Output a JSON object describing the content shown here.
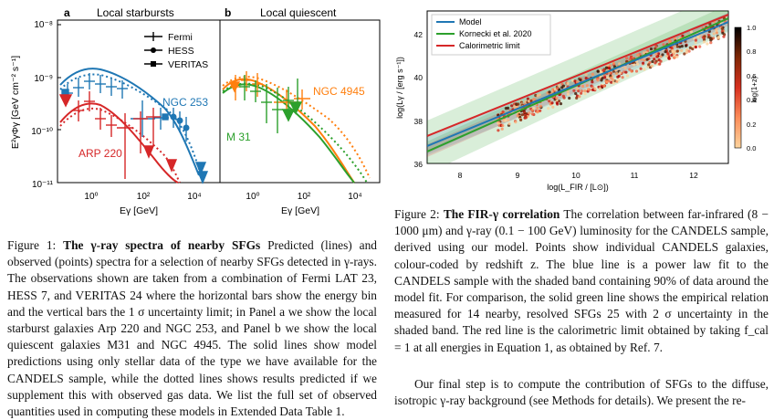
{
  "figure1": {
    "panel_a": {
      "letter": "a",
      "title": "Local starbursts",
      "legend": [
        "Fermi",
        "HESS",
        "VERITAS"
      ],
      "labels": [
        "NGC 253",
        "ARP 220"
      ]
    },
    "panel_b": {
      "letter": "b",
      "title": "Local quiescent",
      "labels": [
        "NGC 4945",
        "M 31"
      ]
    },
    "y_axis_label": "E²γΦγ [GeV cm⁻² s⁻¹]",
    "x_axis_label": "Eγ [GeV]",
    "y_ticks": [
      "10⁻⁸",
      "10⁻⁹",
      "10⁻¹⁰",
      "10⁻¹¹"
    ],
    "x_ticks_a": [
      "10⁰",
      "10²",
      "10⁴"
    ],
    "x_ticks_b": [
      "10⁰",
      "10²",
      "10⁴"
    ],
    "caption_label": "Figure 1:",
    "caption_title": "The γ-ray spectra of nearby SFGs",
    "caption_text": "Predicted (lines) and observed (points) spectra for a selection of nearby SFGs detected in γ-rays. The observations shown are taken from a combination of Fermi LAT 23, HESS 7, and VERITAS 24 where the horizontal bars show the energy bin and the vertical bars the 1 σ uncertainty limit; in Panel a we show the local starburst galaxies Arp 220 and NGC 253, and Panel b we show the local quiescent galaxies M31 and NGC 4945. The solid lines show model predictions using only stellar data of the type we have available for the CANDELS sample, while the dotted lines shows results predicted if we supplement this with observed gas data. We list the full set of observed quantities used in computing these models in Extended Data Table 1."
  },
  "figure2": {
    "legend": [
      "Model",
      "Kornecki et al. 2020",
      "Calorimetric limit"
    ],
    "x_axis_label": "log(L_FIR / [L⊙])",
    "y_axis_label": "log(Lγ / [erg s⁻¹])",
    "x_ticks": [
      "8",
      "9",
      "10",
      "11",
      "12"
    ],
    "y_ticks": [
      "36",
      "38",
      "40",
      "42"
    ],
    "colorbar_label": "log(1+z)",
    "colorbar_ticks": [
      "0.0",
      "0.2",
      "0.4",
      "0.6",
      "0.8",
      "1.0"
    ],
    "caption_label": "Figure 2:",
    "caption_title": "The FIR-γ correlation",
    "caption_text": "The correlation between far-infrared (8 − 1000 μm) and γ-ray (0.1 − 100 GeV) luminosity for the CANDELS sample, derived using our model. Points show individual CANDELS galaxies, colour-coded by redshift z. The blue line is a power law fit to the CANDELS sample with the shaded band containing 90% of data around the model fit. For comparison, the solid green line shows the empirical relation measured for 14 nearby, resolved SFGs 25 with 2 σ uncertainty in the shaded band. The red line is the calorimetric limit obtained by taking f_cal = 1 at all energies in Equation 1, as obtained by Ref. 7."
  },
  "body": {
    "text": "Our final step is to compute the contribution of SFGs to the diffuse, isotropic γ-ray background (see Methods for details). We present the re-"
  },
  "chart_data": [
    {
      "type": "line",
      "title": "Local starbursts",
      "xlabel": "Eγ [GeV]",
      "ylabel": "E²γΦγ [GeV cm⁻² s⁻¹]",
      "xscale": "log",
      "yscale": "log",
      "xlim": [
        0.03,
        50000
      ],
      "ylim": [
        1e-11,
        1e-08
      ],
      "series": [
        {
          "name": "NGC 253",
          "color": "#1f77b4",
          "x": [
            0.05,
            0.1,
            0.3,
            1,
            3,
            10,
            30,
            100,
            300,
            1000,
            3000,
            10000,
            20000
          ],
          "y": [
            7e-10,
            9e-10,
            1.1e-09,
            1.05e-09,
            9e-10,
            7e-10,
            5e-10,
            3.5e-10,
            2.3e-10,
            1.3e-10,
            6e-11,
            2.2e-11,
            1.2e-11
          ]
        },
        {
          "name": "ARP 220",
          "color": "#d62728",
          "x": [
            0.05,
            0.1,
            0.3,
            1,
            3,
            10,
            30,
            100,
            300,
            1000,
            3000
          ],
          "y": [
            1.2e-10,
            1.8e-10,
            2.8e-10,
            3.2e-10,
            2.8e-10,
            2e-10,
            1.3e-10,
            7e-11,
            3.5e-11,
            1.6e-11,
            1e-11
          ]
        }
      ]
    },
    {
      "type": "line",
      "title": "Local quiescent",
      "xlabel": "Eγ [GeV]",
      "xscale": "log",
      "yscale": "log",
      "xlim": [
        0.03,
        50000
      ],
      "ylim": [
        1e-11,
        1e-08
      ],
      "series": [
        {
          "name": "NGC 4945",
          "color": "#ff7f0e",
          "x": [
            0.05,
            0.1,
            0.3,
            1,
            3,
            10,
            30,
            100,
            300,
            1000,
            3000
          ],
          "y": [
            5e-10,
            7e-10,
            8e-10,
            7e-10,
            5.5e-10,
            3.8e-10,
            2.5e-10,
            1.5e-10,
            8e-11,
            3.5e-11,
            1.5e-11
          ]
        },
        {
          "name": "M 31",
          "color": "#2ca02c",
          "x": [
            0.05,
            0.1,
            0.3,
            1,
            3,
            10,
            30,
            100,
            300,
            1000,
            3000,
            10000
          ],
          "y": [
            4e-10,
            5e-10,
            5.3e-10,
            4.5e-10,
            3.3e-10,
            2.2e-10,
            1.3e-10,
            7e-11,
            3.5e-11,
            1.8e-11,
            1.1e-11,
            1e-11
          ]
        }
      ]
    },
    {
      "type": "scatter",
      "xlabel": "log(L_FIR / [L⊙])",
      "ylabel": "log(Lγ / [erg s⁻¹])",
      "xlim": [
        7.5,
        12.7
      ],
      "ylim": [
        36,
        43
      ],
      "series": [
        {
          "name": "Model",
          "color": "#1f77b4",
          "x": [
            7.5,
            12.7
          ],
          "y": [
            36.9,
            42.0
          ]
        },
        {
          "name": "Kornecki et al. 2020",
          "color": "#2ca02c",
          "x": [
            7.5,
            12.7
          ],
          "y": [
            36.7,
            42.1
          ]
        },
        {
          "name": "Calorimetric limit",
          "color": "#d62728",
          "x": [
            7.5,
            12.7
          ],
          "y": [
            37.4,
            42.2
          ]
        }
      ],
      "colorbar": {
        "label": "log(1+z)",
        "range": [
          0,
          1
        ]
      }
    }
  ]
}
